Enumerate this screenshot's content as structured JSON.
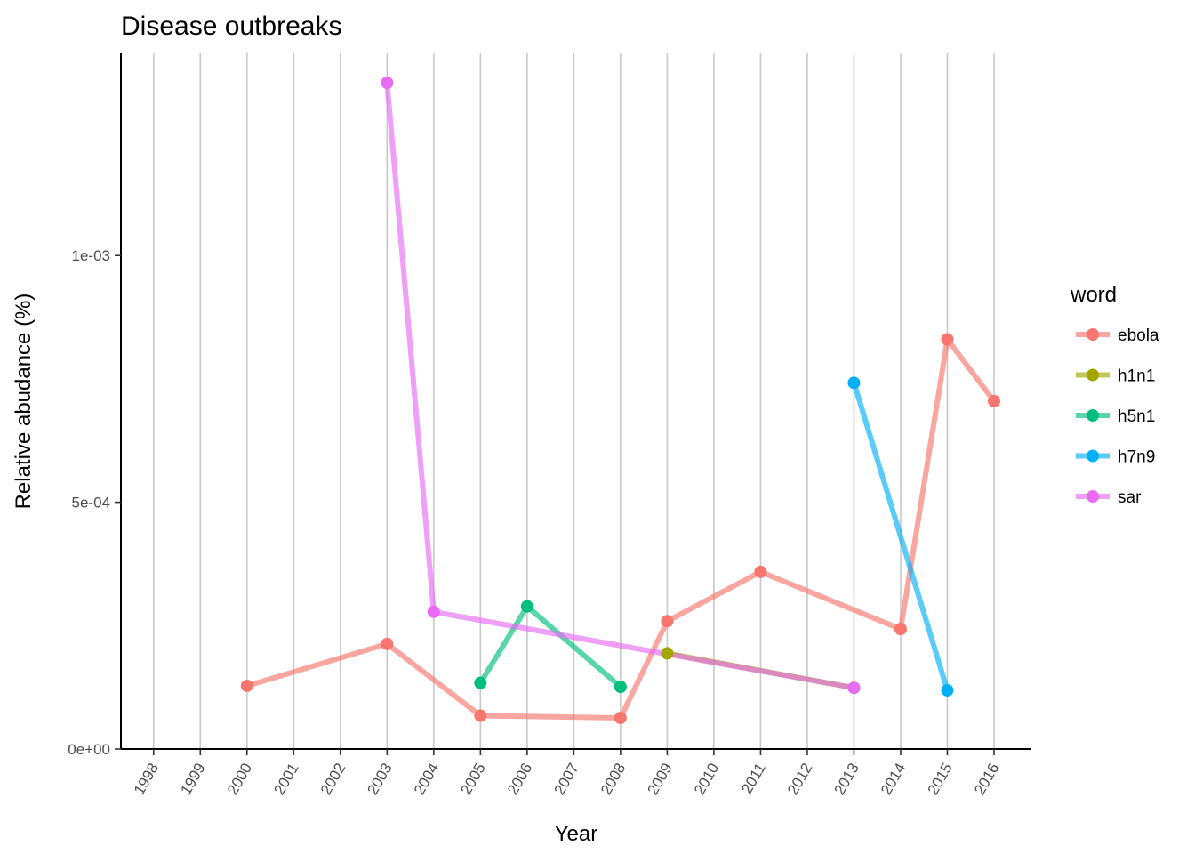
{
  "chart_data": {
    "type": "line",
    "title": "Disease outbreaks",
    "xlabel": "Year",
    "ylabel": "Relative abudance (%)",
    "x_ticks": [
      "1998",
      "1999",
      "2000",
      "2001",
      "2002",
      "2003",
      "2004",
      "2005",
      "2006",
      "2007",
      "2008",
      "2009",
      "2010",
      "2011",
      "2012",
      "2013",
      "2014",
      "2015",
      "2016"
    ],
    "y_ticks": [
      {
        "value": 0,
        "label": "0e+00"
      },
      {
        "value": 0.0005,
        "label": "5e-04"
      },
      {
        "value": 0.001,
        "label": "1e-03"
      }
    ],
    "xlim": [
      1997.3,
      2016.8
    ],
    "ylim": [
      0,
      0.00135
    ],
    "grid": "vertical major lines",
    "legend_title": "word",
    "legend_position": "right",
    "series": [
      {
        "name": "ebola",
        "color": "#F8766D",
        "x": [
          2000,
          2003,
          2005,
          2008,
          2009,
          2011,
          2014,
          2015,
          2016
        ],
        "y": [
          0.000128,
          0.000213,
          6.75e-05,
          6.3e-05,
          0.000259,
          0.000359,
          0.000243,
          0.00083,
          0.000705
        ]
      },
      {
        "name": "h1n1",
        "color": "#A3A500",
        "x": [
          2009,
          2013
        ],
        "y": [
          0.000194,
          0.000124
        ]
      },
      {
        "name": "h5n1",
        "color": "#00BF7D",
        "x": [
          2005,
          2006,
          2008
        ],
        "y": [
          0.000134,
          0.000289,
          0.000126
        ]
      },
      {
        "name": "h7n9",
        "color": "#00B0F6",
        "x": [
          2013,
          2015
        ],
        "y": [
          0.000742,
          0.000119
        ]
      },
      {
        "name": "sar",
        "color": "#E76BF3",
        "x": [
          2003,
          2004,
          2013
        ],
        "y": [
          0.00135,
          0.000278,
          0.000124
        ]
      }
    ]
  }
}
